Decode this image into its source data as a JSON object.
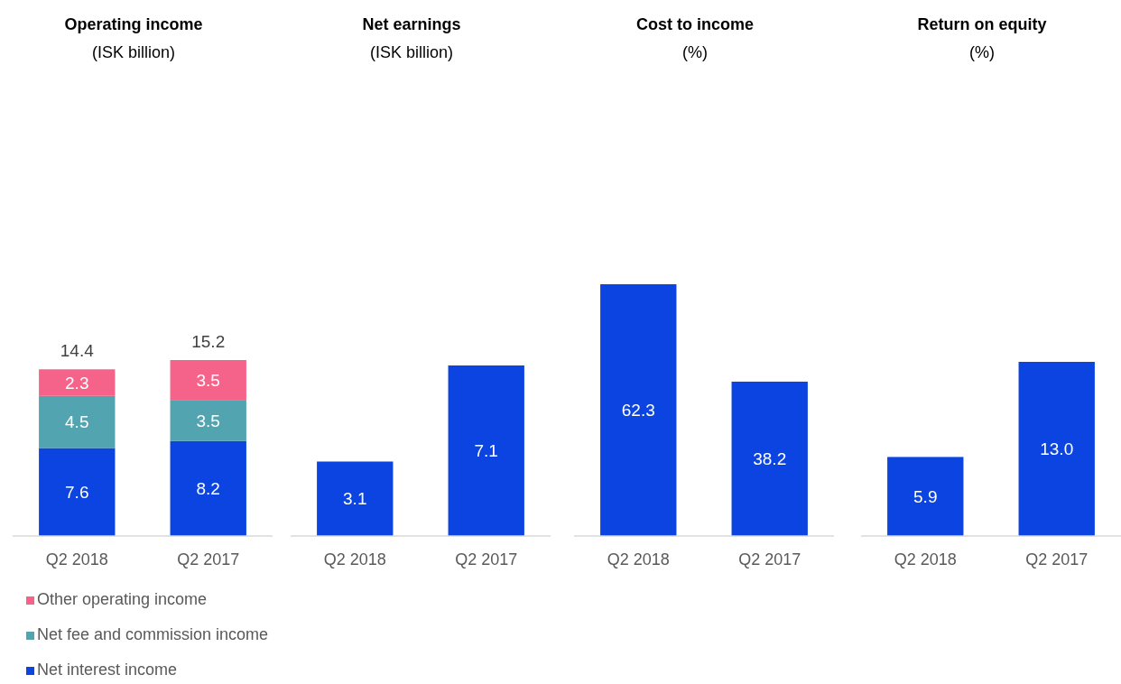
{
  "chart_data": [
    {
      "type": "bar",
      "title": "Operating income",
      "subtitle": "(ISK billion)",
      "categories": [
        "Q2 2018",
        "Q2 2017"
      ],
      "stacked": true,
      "data_labels": true,
      "totals": [
        "14.4",
        "15.2"
      ],
      "legend": "bottom",
      "series": [
        {
          "name": "Net interest income",
          "color": "#0b44e0",
          "values": [
            7.6,
            8.2
          ]
        },
        {
          "name": "Net fee and commission income",
          "color": "#52a5b0",
          "values": [
            4.5,
            3.5
          ]
        },
        {
          "name": "Other operating income",
          "color": "#f5638a",
          "values": [
            2.3,
            3.5
          ]
        }
      ]
    },
    {
      "type": "bar",
      "title": "Net earnings",
      "subtitle": "(ISK billion)",
      "categories": [
        "Q2 2018",
        "Q2 2017"
      ],
      "data_labels": true,
      "color": "#0b44e0",
      "values": [
        3.1,
        7.1
      ]
    },
    {
      "type": "bar",
      "title": "Cost to income",
      "subtitle": "(%)",
      "categories": [
        "Q2 2018",
        "Q2 2017"
      ],
      "data_labels": true,
      "color": "#0b44e0",
      "values": [
        62.3,
        38.2
      ]
    },
    {
      "type": "bar",
      "title": "Return on equity",
      "subtitle": "(%)",
      "categories": [
        "Q2 2018",
        "Q2 2017"
      ],
      "color": "#0b44e0",
      "values": [
        5.9,
        13.0
      ],
      "value_labels": [
        "5.9",
        "13.0"
      ]
    }
  ]
}
